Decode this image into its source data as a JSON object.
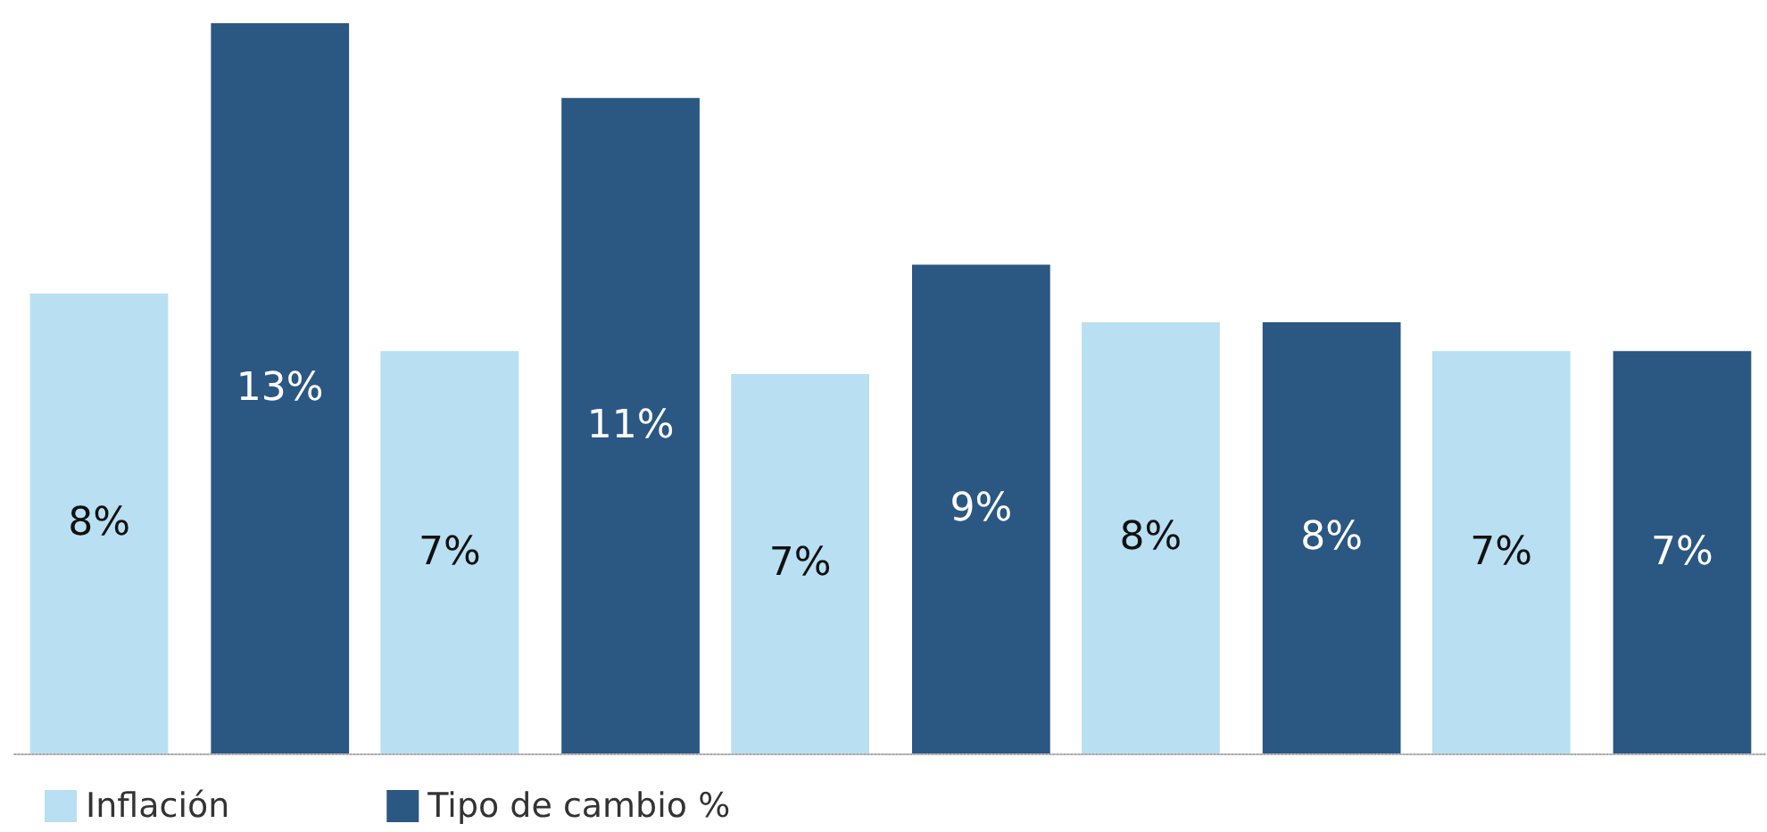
{
  "chart_data": {
    "type": "bar",
    "categories": [
      null,
      null,
      null,
      null,
      null
    ],
    "series": [
      {
        "name": "Inflación",
        "color": "#b9dff2",
        "values": [
          8.0,
          7.0,
          6.6,
          7.5,
          7.0
        ],
        "value_labels": [
          "8%",
          "7%",
          "7%",
          "8%",
          "7%"
        ]
      },
      {
        "name": "Tipo de cambio %",
        "color": "#2b5783",
        "values": [
          12.7,
          11.4,
          8.5,
          7.5,
          7.0
        ],
        "value_labels": [
          "13%",
          "11%",
          "9%",
          "8%",
          "7%"
        ]
      }
    ],
    "legend": "bottom left",
    "grid": false,
    "tick_labels": false
  }
}
